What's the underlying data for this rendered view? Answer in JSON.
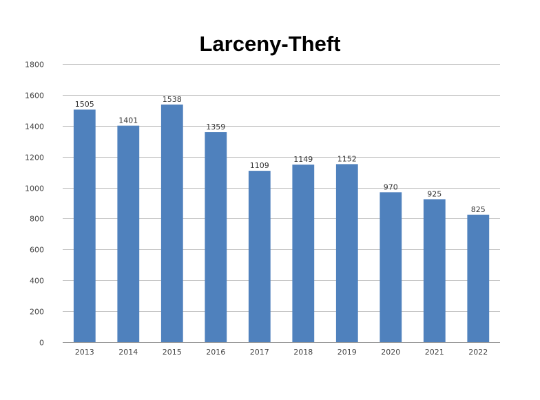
{
  "chart_data": {
    "type": "bar",
    "title": "Larceny-Theft",
    "xlabel": "",
    "ylabel": "",
    "categories": [
      "2013",
      "2014",
      "2015",
      "2016",
      "2017",
      "2018",
      "2019",
      "2020",
      "2021",
      "2022"
    ],
    "values": [
      1505,
      1401,
      1538,
      1359,
      1109,
      1149,
      1152,
      970,
      925,
      825
    ],
    "ylim": [
      0,
      1800
    ],
    "yticks": [
      0,
      200,
      400,
      600,
      800,
      1000,
      1200,
      1400,
      1600,
      1800
    ],
    "grid": true,
    "legend": "none",
    "bar_color": "#4f81bd",
    "data_labels": true
  }
}
